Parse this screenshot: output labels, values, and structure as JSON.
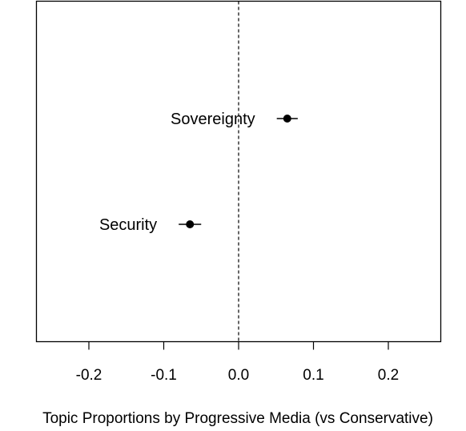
{
  "chart_data": {
    "type": "scatter",
    "title": "",
    "xlabel": "Topic Proportions by Progressive Media (vs Conservative)",
    "ylabel": "",
    "xlim": [
      -0.27,
      0.27
    ],
    "grid": false,
    "reference_line": {
      "x": 0.0,
      "style": "dashed"
    },
    "x_ticks": [
      -0.2,
      -0.1,
      0.0,
      0.1,
      0.2
    ],
    "x_tick_labels": [
      "-0.2",
      "-0.1",
      "0.0",
      "0.1",
      "0.2"
    ],
    "points": [
      {
        "label": "Sovereignty",
        "estimate": 0.065,
        "ci_low": 0.051,
        "ci_high": 0.079
      },
      {
        "label": "Security",
        "estimate": -0.065,
        "ci_low": -0.08,
        "ci_high": -0.05
      }
    ]
  }
}
